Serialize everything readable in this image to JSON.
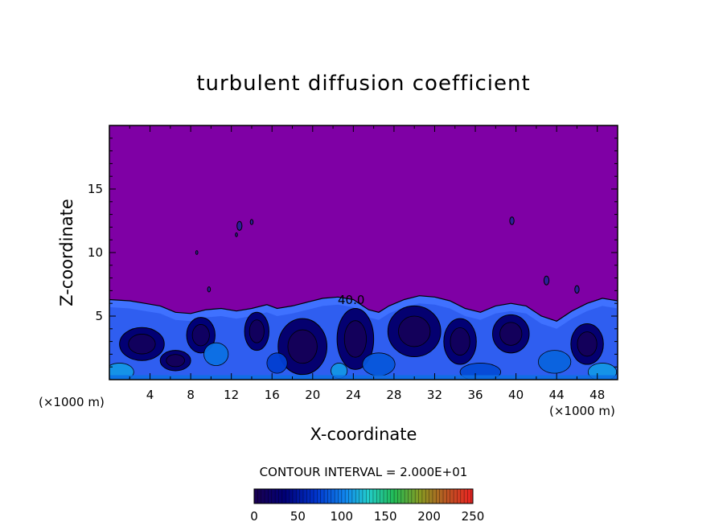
{
  "chart_data": {
    "type": "heatmap",
    "title": "turbulent diffusion coefficient",
    "xlabel": "X-coordinate",
    "ylabel": "Z-coordinate",
    "x_unit": "(×1000 m)",
    "z_unit": "(×1000 m)",
    "xlim": [
      0,
      50
    ],
    "ylim": [
      0,
      20
    ],
    "x_ticks": [
      4,
      8,
      12,
      16,
      20,
      24,
      28,
      32,
      36,
      40,
      44,
      48
    ],
    "y_ticks": [
      5,
      10,
      15
    ],
    "contour_interval_label": "CONTOUR INTERVAL = 2.000E+01",
    "contour_labels": [
      "40.0"
    ],
    "colorbar": {
      "min": 0,
      "max": 250,
      "ticks": [
        0,
        50,
        100,
        150,
        200,
        250
      ]
    },
    "boundary_layer_top": [
      [
        0,
        6.3
      ],
      [
        2,
        6.2
      ],
      [
        3.5,
        6.0
      ],
      [
        5,
        5.8
      ],
      [
        6.5,
        5.3
      ],
      [
        8,
        5.2
      ],
      [
        9.5,
        5.5
      ],
      [
        11,
        5.6
      ],
      [
        12.5,
        5.4
      ],
      [
        14,
        5.6
      ],
      [
        15.5,
        5.9
      ],
      [
        16.5,
        5.6
      ],
      [
        18,
        5.8
      ],
      [
        19.5,
        6.1
      ],
      [
        21,
        6.4
      ],
      [
        22.5,
        6.5
      ],
      [
        24,
        6.3
      ],
      [
        25.5,
        5.5
      ],
      [
        26.5,
        5.3
      ],
      [
        27.5,
        5.8
      ],
      [
        29,
        6.3
      ],
      [
        30.5,
        6.6
      ],
      [
        32,
        6.5
      ],
      [
        33.5,
        6.2
      ],
      [
        35,
        5.6
      ],
      [
        36.5,
        5.3
      ],
      [
        38,
        5.8
      ],
      [
        39.5,
        6.0
      ],
      [
        41,
        5.8
      ],
      [
        42.5,
        5.0
      ],
      [
        44,
        4.6
      ],
      [
        45.5,
        5.4
      ],
      [
        47,
        6.0
      ],
      [
        48.5,
        6.4
      ],
      [
        50,
        6.2
      ]
    ],
    "core_regions": [
      {
        "x": 3.2,
        "z": 2.8,
        "dx": 2.2,
        "dz": 1.3,
        "level": 12
      },
      {
        "x": 6.5,
        "z": 1.5,
        "dx": 1.5,
        "dz": 0.8,
        "level": 10
      },
      {
        "x": 9.0,
        "z": 3.5,
        "dx": 1.4,
        "dz": 1.4,
        "level": 15
      },
      {
        "x": 14.5,
        "z": 3.8,
        "dx": 1.2,
        "dz": 1.5,
        "level": 12
      },
      {
        "x": 19.0,
        "z": 2.6,
        "dx": 2.4,
        "dz": 2.2,
        "level": 8
      },
      {
        "x": 24.2,
        "z": 3.2,
        "dx": 1.8,
        "dz": 2.4,
        "level": 10
      },
      {
        "x": 30.0,
        "z": 3.8,
        "dx": 2.6,
        "dz": 2.0,
        "level": 9
      },
      {
        "x": 34.5,
        "z": 3.0,
        "dx": 1.6,
        "dz": 1.8,
        "level": 12
      },
      {
        "x": 39.5,
        "z": 3.6,
        "dx": 1.8,
        "dz": 1.5,
        "level": 10
      },
      {
        "x": 47.0,
        "z": 2.8,
        "dx": 1.6,
        "dz": 1.6,
        "level": 10
      }
    ],
    "bright_regions": [
      {
        "x": 1.0,
        "z": 0.6,
        "dx": 1.4,
        "dz": 0.7,
        "level": 110
      },
      {
        "x": 10.5,
        "z": 2.0,
        "dx": 1.2,
        "dz": 0.9,
        "level": 95
      },
      {
        "x": 22.6,
        "z": 0.7,
        "dx": 0.8,
        "dz": 0.6,
        "level": 110
      },
      {
        "x": 26.5,
        "z": 1.2,
        "dx": 1.6,
        "dz": 0.9,
        "level": 85
      },
      {
        "x": 36.5,
        "z": 0.6,
        "dx": 2.0,
        "dz": 0.7,
        "level": 80
      },
      {
        "x": 43.8,
        "z": 1.4,
        "dx": 1.6,
        "dz": 0.9,
        "level": 90
      },
      {
        "x": 48.5,
        "z": 0.6,
        "dx": 1.4,
        "dz": 0.7,
        "level": 110
      },
      {
        "x": 16.5,
        "z": 1.3,
        "dx": 1.0,
        "dz": 0.8,
        "level": 75
      }
    ],
    "isolated_blobs": [
      {
        "x": 12.8,
        "z": 12.1,
        "r": 0.35
      },
      {
        "x": 14.0,
        "z": 12.4,
        "r": 0.2
      },
      {
        "x": 12.5,
        "z": 11.4,
        "r": 0.15
      },
      {
        "x": 8.6,
        "z": 10.0,
        "r": 0.15
      },
      {
        "x": 9.8,
        "z": 7.1,
        "r": 0.2
      },
      {
        "x": 39.6,
        "z": 12.5,
        "r": 0.3
      },
      {
        "x": 43.0,
        "z": 7.8,
        "r": 0.35
      },
      {
        "x": 46.0,
        "z": 7.1,
        "r": 0.3
      }
    ]
  },
  "colors": {
    "background_field": "#7f00a5",
    "low": "#0a0a6e",
    "mid": "#3f71ff",
    "bright": "#27f0ee"
  }
}
